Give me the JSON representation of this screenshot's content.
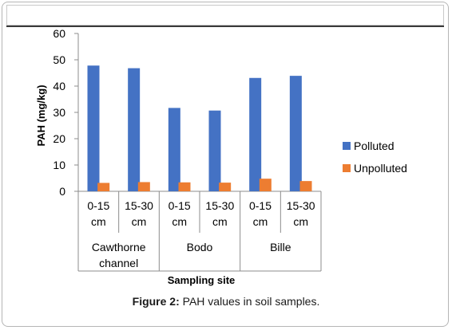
{
  "chart_data": {
    "type": "bar",
    "ylabel": "PAH (mg/kg)",
    "xlabel": "Sampling site",
    "ylim": [
      0,
      60
    ],
    "yticks": [
      0,
      10,
      20,
      30,
      40,
      50,
      60
    ],
    "groups": [
      {
        "label": "Cawthorne channel",
        "categories": [
          "0-15 cm",
          "15-30 cm"
        ]
      },
      {
        "label": "Bodo",
        "categories": [
          "0-15 cm",
          "15-30 cm"
        ]
      },
      {
        "label": "Bille",
        "categories": [
          "0-15 cm",
          "15-30 cm"
        ]
      }
    ],
    "categories": [
      "0-15 cm",
      "15-30 cm",
      "0-15 cm",
      "15-30 cm",
      "0-15 cm",
      "15-30 cm"
    ],
    "category_lines": [
      [
        "0-15",
        "cm"
      ],
      [
        "15-30",
        "cm"
      ],
      [
        "0-15",
        "cm"
      ],
      [
        "15-30",
        "cm"
      ],
      [
        "0-15",
        "cm"
      ],
      [
        "15-30",
        "cm"
      ]
    ],
    "group_lines": [
      [
        "Cawthorne",
        "channel"
      ],
      [
        "Bodo"
      ],
      [
        "Bille"
      ]
    ],
    "series": [
      {
        "name": "Polluted",
        "color": "#4472c4",
        "values": [
          47.8,
          46.8,
          31.7,
          30.7,
          43.1,
          43.9
        ]
      },
      {
        "name": "Unpolluted",
        "color": "#ed7d31",
        "values": [
          3.2,
          3.5,
          3.4,
          3.3,
          4.8,
          3.9
        ]
      }
    ],
    "legend_position": "right",
    "grid": false
  },
  "caption": {
    "label": "Figure 2:",
    "text": " PAH values in soil samples."
  }
}
